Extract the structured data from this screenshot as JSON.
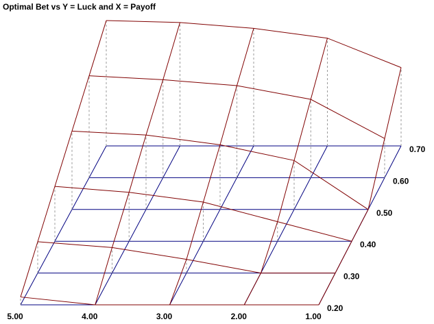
{
  "chart_data": {
    "type": "surface3d",
    "title": "Optimal Bet vs Y = Luck and X = Payoff",
    "xlim": [
      5,
      1
    ],
    "xticks": [
      {
        "value": 5,
        "label": "5.00"
      },
      {
        "value": 4,
        "label": "4.00"
      },
      {
        "value": 3,
        "label": "3.00"
      },
      {
        "value": 2,
        "label": "2.00"
      },
      {
        "value": 1,
        "label": "1.00"
      }
    ],
    "ylim": [
      0.2,
      0.7
    ],
    "yticks": [
      {
        "value": 0.2,
        "label": "0.20"
      },
      {
        "value": 0.3,
        "label": "0.30"
      },
      {
        "value": 0.4,
        "label": "0.40"
      },
      {
        "value": 0.5,
        "label": "0.50"
      },
      {
        "value": 0.6,
        "label": "0.60"
      },
      {
        "value": 0.7,
        "label": "0.70"
      }
    ],
    "z": [
      [
        0.04,
        0,
        0,
        0,
        0
      ],
      [
        0.16,
        0.13,
        0.07,
        0,
        0
      ],
      [
        0.28,
        0.25,
        0.2,
        0.1,
        0
      ],
      [
        0.4,
        0.38,
        0.33,
        0.25,
        0
      ],
      [
        0.52,
        0.5,
        0.47,
        0.4,
        0.2
      ],
      [
        0.64,
        0.63,
        0.6,
        0.55,
        0.4
      ]
    ],
    "surface_color": "#800000",
    "floor_color": "#000080"
  }
}
